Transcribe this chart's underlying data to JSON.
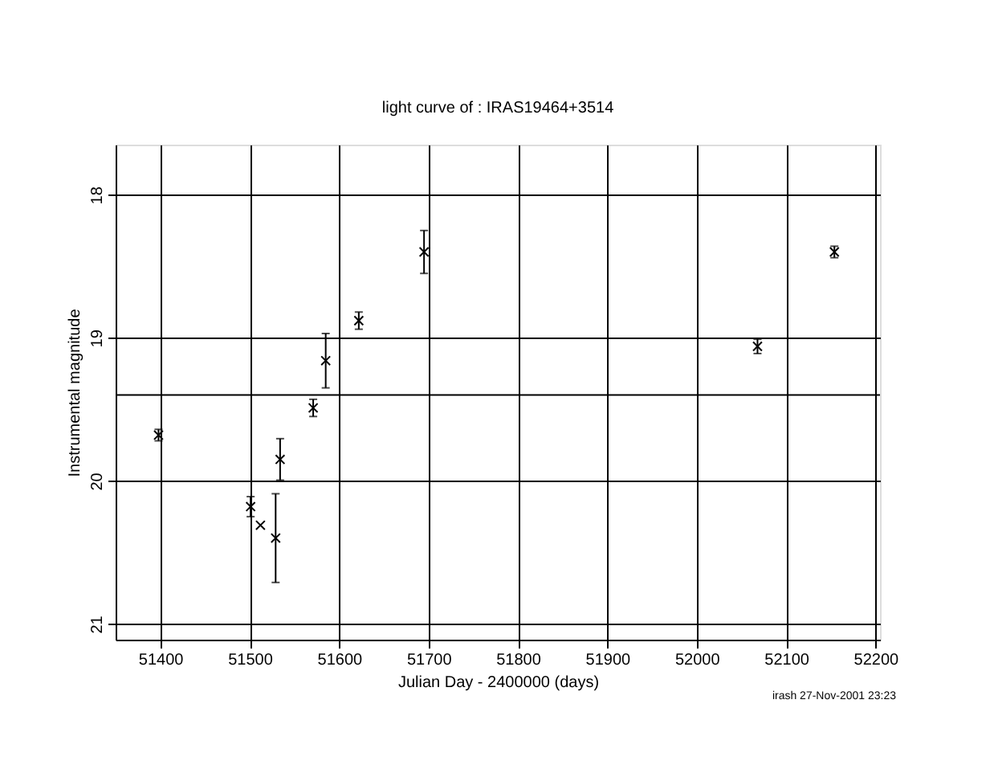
{
  "chart_data": {
    "type": "scatter",
    "title": "light curve of : IRAS19464+3514",
    "xlabel": "Julian Day - 2400000 (days)",
    "ylabel": "Instrumental magnitude",
    "x": [
      51398,
      51501,
      51512,
      51529,
      51534,
      51571,
      51585,
      51622,
      51695,
      52068,
      52154
    ],
    "series": [
      {
        "color": "#000000",
        "values": [
          19.68,
          20.18,
          20.31,
          20.4,
          19.85,
          19.49,
          19.16,
          18.88,
          18.4,
          19.06,
          18.4
        ],
        "errors": [
          0.04,
          0.07,
          null,
          0.31,
          0.145,
          0.06,
          0.19,
          0.06,
          0.15,
          0.05,
          0.04
        ]
      }
    ],
    "xlim": [
      51350,
      52205
    ],
    "xticks": [
      51400,
      51500,
      51600,
      51700,
      51800,
      51900,
      52000,
      52100,
      52200
    ],
    "ylim": [
      21.11,
      17.65
    ],
    "yticks": [
      18,
      19,
      20,
      21
    ],
    "ref_lines": [
      {
        "axis": "y",
        "value": 19.4,
        "label": null
      }
    ],
    "grid": true,
    "marker": "cross",
    "annotations": [
      "irash 27-Nov-2001 23:23"
    ]
  }
}
